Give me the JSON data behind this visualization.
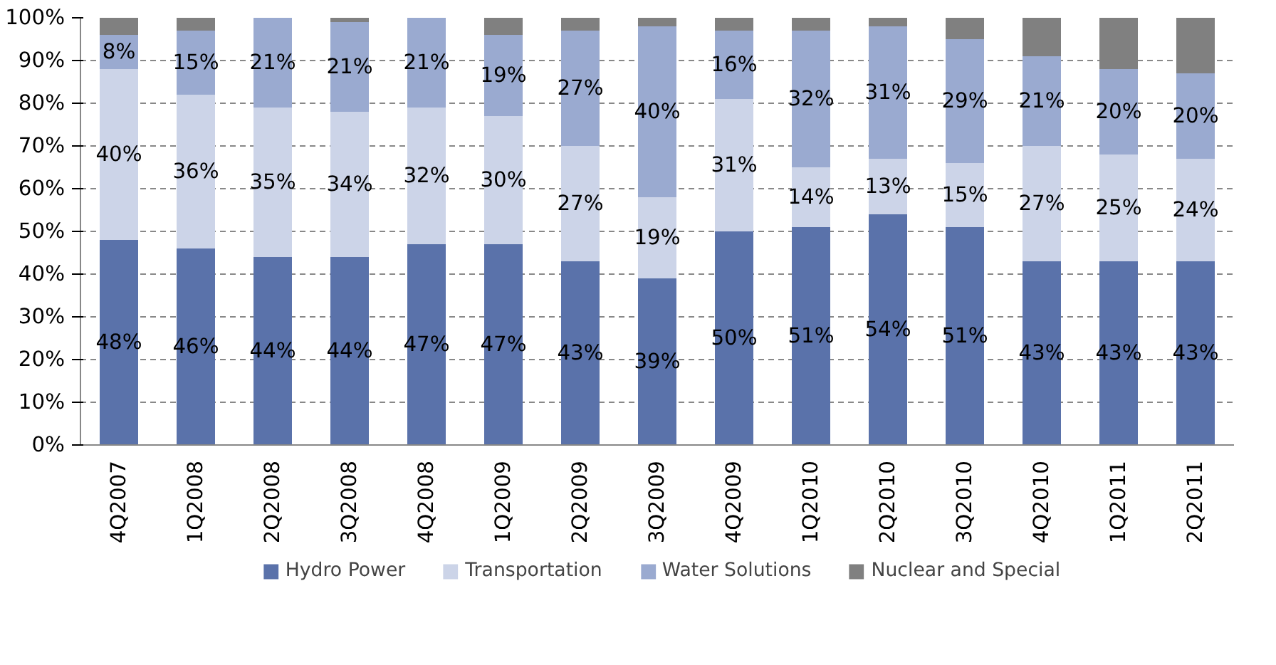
{
  "chart_data": {
    "type": "bar",
    "stacked": true,
    "categories": [
      "4Q2007",
      "1Q2008",
      "2Q2008",
      "3Q2008",
      "4Q2008",
      "1Q2009",
      "2Q2009",
      "3Q2009",
      "4Q2009",
      "1Q2010",
      "2Q2010",
      "3Q2010",
      "4Q2010",
      "1Q2011",
      "2Q2011"
    ],
    "series": [
      {
        "name": "Hydro Power",
        "color": "#5a72aa",
        "values": [
          48,
          46,
          44,
          44,
          47,
          47,
          43,
          39,
          50,
          51,
          54,
          51,
          43,
          43,
          43
        ],
        "value_labels": [
          "48%",
          "46%",
          "44%",
          "44%",
          "47%",
          "47%",
          "43%",
          "39%",
          "50%",
          "51%",
          "54%",
          "51%",
          "43%",
          "43%",
          "43%"
        ]
      },
      {
        "name": "Transportation",
        "color": "#ccd4e8",
        "values": [
          40,
          36,
          35,
          34,
          32,
          30,
          27,
          19,
          31,
          14,
          13,
          15,
          27,
          25,
          24
        ],
        "value_labels": [
          "40%",
          "36%",
          "35%",
          "34%",
          "32%",
          "30%",
          "27%",
          "19%",
          "31%",
          "14%",
          "13%",
          "15%",
          "27%",
          "25%",
          "24%"
        ]
      },
      {
        "name": "Water Solutions",
        "color": "#9aaad0",
        "values": [
          8,
          15,
          21,
          21,
          21,
          19,
          27,
          40,
          16,
          32,
          31,
          29,
          21,
          20,
          20
        ],
        "value_labels": [
          "8%",
          "15%",
          "21%",
          "21%",
          "21%",
          "19%",
          "27%",
          "40%",
          "16%",
          "32%",
          "31%",
          "29%",
          "21%",
          "20%",
          "20%"
        ]
      },
      {
        "name": "Nuclear and Special",
        "color": "#808080",
        "values": [
          4,
          3,
          0,
          1,
          0,
          4,
          3,
          2,
          3,
          3,
          2,
          5,
          9,
          12,
          13
        ]
      }
    ],
    "ylim": [
      0,
      100
    ],
    "yticks": [
      {
        "value": 0,
        "label": "0%"
      },
      {
        "value": 10,
        "label": "10%"
      },
      {
        "value": 20,
        "label": "20%"
      },
      {
        "value": 30,
        "label": "30%"
      },
      {
        "value": 40,
        "label": "40%"
      },
      {
        "value": 50,
        "label": "50%"
      },
      {
        "value": 60,
        "label": "60%"
      },
      {
        "value": 70,
        "label": "70%"
      },
      {
        "value": 80,
        "label": "80%"
      },
      {
        "value": 90,
        "label": "90%"
      },
      {
        "value": 100,
        "label": "100%"
      }
    ],
    "grid": "y",
    "legend": "bottom"
  }
}
